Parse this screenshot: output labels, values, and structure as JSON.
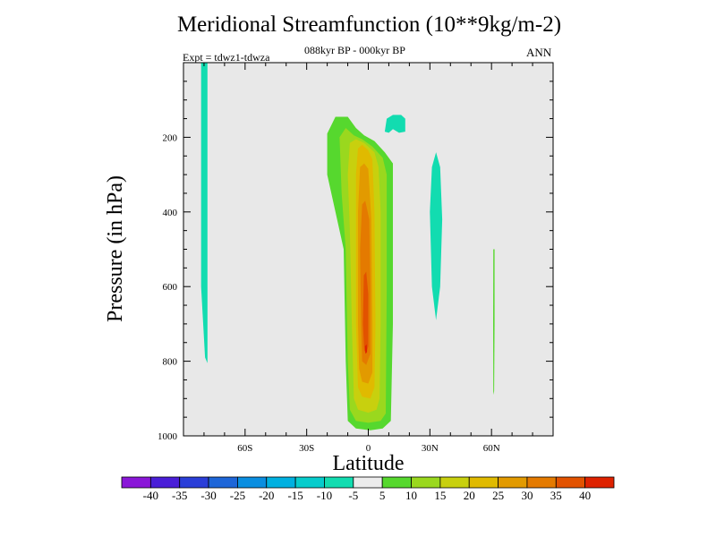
{
  "chart_data": {
    "type": "heatmap",
    "title": "Meridional Streamfunction (10**9kg/m-2)",
    "subtitle": "088kyr BP - 000kyr BP",
    "left_label": "Expt = tdwz1-tdwza",
    "right_label": "ANN",
    "xlabel": "Latitude",
    "ylabel": "Pressure (in hPa)",
    "xlim": [
      -90,
      90
    ],
    "ylim": [
      1000,
      0
    ],
    "xticks": [
      {
        "value": -60,
        "label": "60S"
      },
      {
        "value": -30,
        "label": "30S"
      },
      {
        "value": 0,
        "label": "0"
      },
      {
        "value": 30,
        "label": "30N"
      },
      {
        "value": 60,
        "label": "60N"
      }
    ],
    "yticks": [
      {
        "value": 200,
        "label": "200"
      },
      {
        "value": 400,
        "label": "400"
      },
      {
        "value": 600,
        "label": "600"
      },
      {
        "value": 800,
        "label": "800"
      },
      {
        "value": 1000,
        "label": "1000"
      }
    ],
    "background_color": "#e8e8e8",
    "levels": [
      "-40",
      "-35",
      "-30",
      "-25",
      "-20",
      "-15",
      "-10",
      "-5",
      "5",
      "10",
      "15",
      "20",
      "25",
      "30",
      "35",
      "40"
    ],
    "colors": [
      "#8a16d8",
      "#4a1ed8",
      "#2a3ed8",
      "#1e66d8",
      "#0a8ee0",
      "#00b0e0",
      "#06cccc",
      "#12dcb0",
      "#ececec",
      "#56d82e",
      "#9ad81e",
      "#c8d00e",
      "#e0ba00",
      "#e29a00",
      "#e47a00",
      "#e25200",
      "#de2200"
    ],
    "regions": [
      {
        "value": "-10 to -5",
        "color": "#12dcb0",
        "points": [
          [
            -81.4,
            0
          ],
          [
            -78.3,
            0
          ],
          [
            -78.3,
            200
          ],
          [
            -78.3,
            400
          ],
          [
            -78.3,
            600
          ],
          [
            -78.3,
            805
          ],
          [
            -79.5,
            790
          ],
          [
            -81.4,
            600
          ],
          [
            -81.4,
            400
          ],
          [
            -81.4,
            200
          ]
        ]
      },
      {
        "value": "-10 to -5",
        "color": "#12dcb0",
        "points": [
          [
            8,
            185
          ],
          [
            9,
            150
          ],
          [
            12,
            140
          ],
          [
            16,
            140
          ],
          [
            18,
            150
          ],
          [
            18,
            185
          ],
          [
            15,
            188
          ],
          [
            12,
            178
          ],
          [
            10,
            188
          ]
        ]
      },
      {
        "value": "-10 to -5",
        "color": "#12dcb0",
        "points": [
          [
            31,
            280
          ],
          [
            33,
            240
          ],
          [
            35,
            280
          ],
          [
            36,
            420
          ],
          [
            35,
            600
          ],
          [
            33,
            690
          ],
          [
            31,
            600
          ],
          [
            30,
            400
          ]
        ]
      },
      {
        "value": "5 to 10",
        "color": "#56d82e",
        "points": [
          [
            -20,
            190
          ],
          [
            -16,
            145
          ],
          [
            -10,
            145
          ],
          [
            -6,
            175
          ],
          [
            -2,
            195
          ],
          [
            3,
            210
          ],
          [
            8,
            240
          ],
          [
            12,
            270
          ],
          [
            12,
            500
          ],
          [
            12,
            700
          ],
          [
            11,
            960
          ],
          [
            7,
            980
          ],
          [
            1,
            985
          ],
          [
            -6,
            980
          ],
          [
            -10,
            960
          ],
          [
            -11,
            800
          ],
          [
            -12,
            500
          ],
          [
            -16,
            400
          ],
          [
            -20,
            300
          ]
        ]
      },
      {
        "value": "10 to 15",
        "color": "#9ad81e",
        "points": [
          [
            -14,
            200
          ],
          [
            -11,
            175
          ],
          [
            -7,
            195
          ],
          [
            -3,
            205
          ],
          [
            2,
            225
          ],
          [
            7,
            255
          ],
          [
            9,
            300
          ],
          [
            9,
            600
          ],
          [
            8.5,
            940
          ],
          [
            6,
            960
          ],
          [
            0,
            965
          ],
          [
            -6,
            960
          ],
          [
            -9,
            930
          ],
          [
            -10,
            800
          ],
          [
            -11,
            500
          ],
          [
            -13,
            350
          ]
        ]
      },
      {
        "value": "15 to 20",
        "color": "#c8d00e",
        "points": [
          [
            -9,
            215
          ],
          [
            -6,
            205
          ],
          [
            -2,
            215
          ],
          [
            3,
            240
          ],
          [
            5,
            280
          ],
          [
            6,
            400
          ],
          [
            6,
            700
          ],
          [
            5.5,
            900
          ],
          [
            4,
            930
          ],
          [
            0,
            938
          ],
          [
            -5,
            930
          ],
          [
            -7,
            900
          ],
          [
            -8,
            700
          ],
          [
            -9,
            450
          ],
          [
            -10,
            300
          ]
        ]
      },
      {
        "value": "20 to 25",
        "color": "#e0ba00",
        "points": [
          [
            -5,
            230
          ],
          [
            -3,
            220
          ],
          [
            0,
            235
          ],
          [
            2,
            260
          ],
          [
            3,
            400
          ],
          [
            3.5,
            700
          ],
          [
            3,
            870
          ],
          [
            1,
            900
          ],
          [
            -3,
            895
          ],
          [
            -5,
            870
          ],
          [
            -6,
            700
          ],
          [
            -6,
            400
          ],
          [
            -6,
            300
          ]
        ]
      },
      {
        "value": "25 to 30",
        "color": "#e29a00",
        "points": [
          [
            -4,
            280
          ],
          [
            -2,
            270
          ],
          [
            0,
            285
          ],
          [
            1.5,
            420
          ],
          [
            2,
            700
          ],
          [
            2,
            830
          ],
          [
            0,
            860
          ],
          [
            -3,
            855
          ],
          [
            -4.5,
            820
          ],
          [
            -5,
            700
          ],
          [
            -5,
            400
          ]
        ]
      },
      {
        "value": "30 to 35",
        "color": "#e47a00",
        "points": [
          [
            -3,
            380
          ],
          [
            -1.5,
            370
          ],
          [
            0.5,
            420
          ],
          [
            1,
            600
          ],
          [
            1,
            780
          ],
          [
            -1,
            810
          ],
          [
            -3,
            800
          ],
          [
            -3.5,
            700
          ],
          [
            -4,
            500
          ]
        ]
      },
      {
        "value": "35 to 40",
        "color": "#e25200",
        "points": [
          [
            -2.2,
            570
          ],
          [
            -1,
            560
          ],
          [
            0,
            620
          ],
          [
            0,
            760
          ],
          [
            -1,
            780
          ],
          [
            -2,
            770
          ],
          [
            -2.6,
            700
          ]
        ]
      },
      {
        "value": "> 40",
        "color": "#de2200",
        "points": [
          [
            -1.6,
            760
          ],
          [
            -0.8,
            755
          ],
          [
            -0.6,
            775
          ],
          [
            -1.4,
            780
          ]
        ]
      },
      {
        "value": "5 to 10",
        "color": "#56d82e",
        "points": [
          [
            60.9,
            500
          ],
          [
            61.5,
            500
          ],
          [
            61.5,
            700
          ],
          [
            61.3,
            880
          ],
          [
            60.9,
            890
          ],
          [
            60.8,
            700
          ]
        ]
      }
    ]
  }
}
